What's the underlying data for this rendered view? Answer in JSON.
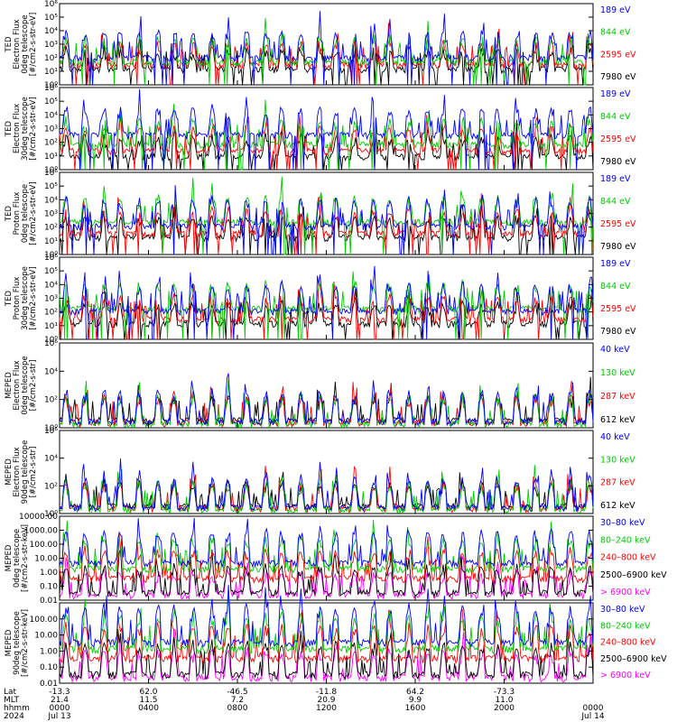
{
  "chart_data": [
    {
      "type": "line",
      "ylabel": [
        "TED",
        "Electron Flux",
        "0deg telescope",
        "[#/cm2-s-str-eV]"
      ],
      "yscale": "log",
      "ylim": [
        1,
        1000000
      ],
      "yticks": [
        {
          "v": 1,
          "label": "10⁰"
        },
        {
          "v": 10,
          "label": "10¹"
        },
        {
          "v": 100,
          "label": "10²"
        },
        {
          "v": 1000,
          "label": "10³"
        },
        {
          "v": 10000,
          "label": "10⁴"
        },
        {
          "v": 100000,
          "label": "10⁵"
        },
        {
          "v": 1000000,
          "label": "10⁶"
        }
      ],
      "series": [
        {
          "name": "7980 eV",
          "color": "#000000",
          "base": 12
        },
        {
          "name": "2595 eV",
          "color": "#ff0000",
          "base": 25
        },
        {
          "name": "844 eV",
          "color": "#00cc00",
          "base": 40
        },
        {
          "name": "189 eV",
          "color": "#0000ff",
          "base": 90
        }
      ]
    },
    {
      "type": "line",
      "ylabel": [
        "TED",
        "Electron Flux",
        "30deg telescope",
        "[#/cm2-s-str-eV]"
      ],
      "yscale": "log",
      "ylim": [
        1,
        1000000
      ],
      "yticks": [
        {
          "v": 1,
          "label": "10⁰"
        },
        {
          "v": 10,
          "label": "10¹"
        },
        {
          "v": 100,
          "label": "10²"
        },
        {
          "v": 1000,
          "label": "10³"
        },
        {
          "v": 10000,
          "label": "10⁴"
        },
        {
          "v": 100000,
          "label": "10⁵"
        },
        {
          "v": 1000000,
          "label": "10⁶"
        }
      ],
      "series": [
        {
          "name": "7980 eV",
          "color": "#000000",
          "base": 8
        },
        {
          "name": "2595 eV",
          "color": "#ff0000",
          "base": 20
        },
        {
          "name": "844 eV",
          "color": "#00cc00",
          "base": 60
        },
        {
          "name": "189 eV",
          "color": "#0000ff",
          "base": 300
        }
      ]
    },
    {
      "type": "line",
      "ylabel": [
        "TED",
        "Proton Flux",
        "0deg telescope",
        "[#/cm2-s-str-eV]"
      ],
      "yscale": "log",
      "ylim": [
        1,
        1000000
      ],
      "yticks": [
        {
          "v": 1,
          "label": "10⁰"
        },
        {
          "v": 10,
          "label": "10¹"
        },
        {
          "v": 100,
          "label": "10²"
        },
        {
          "v": 1000,
          "label": "10³"
        },
        {
          "v": 10000,
          "label": "10⁴"
        },
        {
          "v": 100000,
          "label": "10⁵"
        },
        {
          "v": 1000000,
          "label": "10⁶"
        }
      ],
      "series": [
        {
          "name": "7980 eV",
          "color": "#000000",
          "base": 15
        },
        {
          "name": "2595 eV",
          "color": "#ff0000",
          "base": 30
        },
        {
          "name": "844 eV",
          "color": "#00cc00",
          "base": 200
        },
        {
          "name": "189 eV",
          "color": "#0000ff",
          "base": 100
        }
      ]
    },
    {
      "type": "line",
      "ylabel": [
        "TED",
        "Proton Flux",
        "30deg telescope",
        "[#/cm2-s-str-eV]"
      ],
      "yscale": "log",
      "ylim": [
        1,
        1000000
      ],
      "yticks": [
        {
          "v": 1,
          "label": "10⁰"
        },
        {
          "v": 10,
          "label": "10¹"
        },
        {
          "v": 100,
          "label": "10²"
        },
        {
          "v": 1000,
          "label": "10³"
        },
        {
          "v": 10000,
          "label": "10⁴"
        },
        {
          "v": 100000,
          "label": "10⁵"
        },
        {
          "v": 1000000,
          "label": "10⁶"
        }
      ],
      "series": [
        {
          "name": "7980 eV",
          "color": "#000000",
          "base": 12
        },
        {
          "name": "2595 eV",
          "color": "#ff0000",
          "base": 25
        },
        {
          "name": "844 eV",
          "color": "#00cc00",
          "base": 150
        },
        {
          "name": "189 eV",
          "color": "#0000ff",
          "base": 100
        }
      ]
    },
    {
      "type": "line",
      "ylabel": [
        "MEPED",
        "Electron Flux",
        "0deg telescope",
        "[#/cm2-s-str]"
      ],
      "yscale": "log",
      "ylim": [
        1,
        1000000
      ],
      "yticks": [
        {
          "v": 1,
          "label": "10⁰"
        },
        {
          "v": 100,
          "label": "10²"
        },
        {
          "v": 10000,
          "label": "10⁴"
        },
        {
          "v": 1000000,
          "label": "10⁶"
        }
      ],
      "series": [
        {
          "name": "612 keV",
          "color": "#000000",
          "base": 3
        },
        {
          "name": "287 keV",
          "color": "#ff0000",
          "base": 2
        },
        {
          "name": "130 keV",
          "color": "#00cc00",
          "base": 1.6
        },
        {
          "name": "40 keV",
          "color": "#0000ff",
          "base": 2.5
        }
      ]
    },
    {
      "type": "line",
      "ylabel": [
        "MEPED",
        "Electron Flux",
        "90deg telescope",
        "[#/cm2-s-str]"
      ],
      "yscale": "log",
      "ylim": [
        1,
        1000000
      ],
      "yticks": [
        {
          "v": 1,
          "label": "10⁰"
        },
        {
          "v": 100,
          "label": "10²"
        },
        {
          "v": 10000,
          "label": "10⁴"
        },
        {
          "v": 1000000,
          "label": "10⁶"
        }
      ],
      "series": [
        {
          "name": "612 keV",
          "color": "#000000",
          "base": 3
        },
        {
          "name": "287 keV",
          "color": "#ff0000",
          "base": 2
        },
        {
          "name": "130 keV",
          "color": "#00cc00",
          "base": 1.6
        },
        {
          "name": "40 keV",
          "color": "#0000ff",
          "base": 2.5
        }
      ]
    },
    {
      "type": "line",
      "ylabel": [
        "MEPED",
        "0deg telescope",
        "[#/cm2-s-str-keV]"
      ],
      "yscale": "log",
      "ylim": [
        0.01,
        10000
      ],
      "yticks": [
        {
          "v": 0.01,
          "label": "0.01"
        },
        {
          "v": 0.1,
          "label": "0.10"
        },
        {
          "v": 1,
          "label": "1.00"
        },
        {
          "v": 10,
          "label": "10.00"
        },
        {
          "v": 100,
          "label": "100.00"
        },
        {
          "v": 1000,
          "label": "1000.00"
        },
        {
          "v": 10000,
          "label": "10000.00"
        }
      ],
      "series": [
        {
          "name": "> 6900 keV",
          "color": "#ff00ff",
          "base": 0.02
        },
        {
          "name": "2500–6900 keV",
          "color": "#000000",
          "base": 0.03
        },
        {
          "name": "240–800 keV",
          "color": "#ff0000",
          "base": 0.3
        },
        {
          "name": "80–240 keV",
          "color": "#00cc00",
          "base": 1.5
        },
        {
          "name": "30–80 keV",
          "color": "#0000ff",
          "base": 4
        }
      ]
    },
    {
      "type": "line",
      "ylabel": [
        "MEPED",
        "90deg telescope",
        "[#/cm2-s-str-keV]"
      ],
      "yscale": "log",
      "ylim": [
        0.01,
        1000
      ],
      "yticks": [
        {
          "v": 0.01,
          "label": "0.01"
        },
        {
          "v": 0.1,
          "label": "0.10"
        },
        {
          "v": 1,
          "label": "1.00"
        },
        {
          "v": 10,
          "label": "10.00"
        },
        {
          "v": 100,
          "label": "100.00"
        }
      ],
      "series": [
        {
          "name": "> 6900 keV",
          "color": "#ff00ff",
          "base": 0.02
        },
        {
          "name": "2500–6900 keV",
          "color": "#000000",
          "base": 0.03
        },
        {
          "name": "240–800 keV",
          "color": "#ff0000",
          "base": 0.3
        },
        {
          "name": "80–240 keV",
          "color": "#00cc00",
          "base": 1.2
        },
        {
          "name": "30–80 keV",
          "color": "#0000ff",
          "base": 3
        }
      ]
    }
  ],
  "x_axis": {
    "row_labels": [
      "Lat",
      "MLT",
      "hhmm",
      "2024"
    ],
    "ticks": [
      {
        "pos": 0.0,
        "lat": "-13.3",
        "mlt": "21.4",
        "hhmm": "0000",
        "date": "Jul 13"
      },
      {
        "pos": 0.1667,
        "lat": "62.0",
        "mlt": "11.5",
        "hhmm": "0400",
        "date": ""
      },
      {
        "pos": 0.3333,
        "lat": "-46.5",
        "mlt": "7.2",
        "hhmm": "0800",
        "date": ""
      },
      {
        "pos": 0.5,
        "lat": "-11.8",
        "mlt": "20.9",
        "hhmm": "1200",
        "date": ""
      },
      {
        "pos": 0.6667,
        "lat": "64.2",
        "mlt": "9.9",
        "hhmm": "1600",
        "date": ""
      },
      {
        "pos": 0.8333,
        "lat": "-73.3",
        "mlt": "11.0",
        "hhmm": "2000",
        "date": ""
      },
      {
        "pos": 1.0,
        "lat": "",
        "mlt": "",
        "hhmm": "0000",
        "date": "Jul 14"
      }
    ]
  }
}
